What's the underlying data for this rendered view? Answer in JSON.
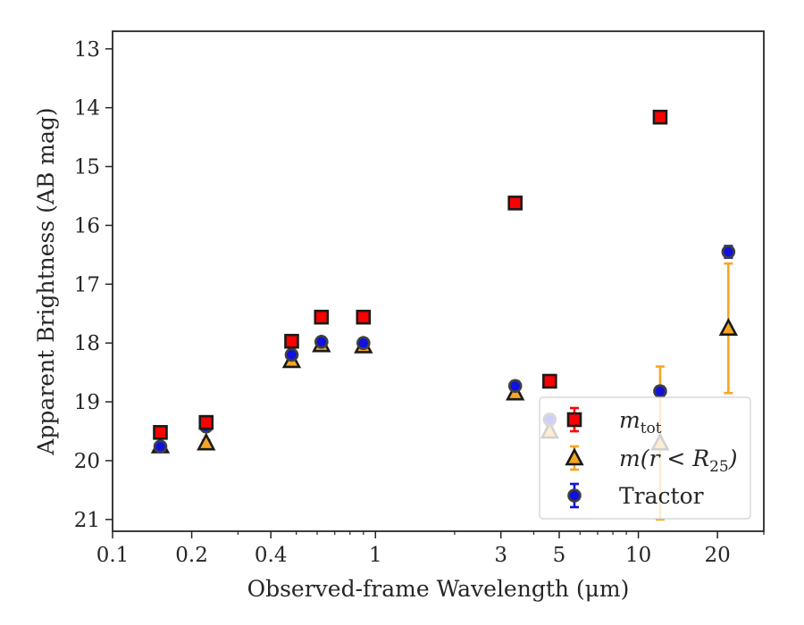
{
  "chart_data": {
    "type": "scatter",
    "title": "",
    "xlabel": "Observed-frame Wavelength (μm)",
    "ylabel": "Apparent Brightness (AB mag)",
    "xscale": "log",
    "xlim": [
      0.1,
      30
    ],
    "ylim": [
      21.2,
      12.7
    ],
    "y_inverted": true,
    "grid": false,
    "legend_position": "lower-right",
    "x_ticks": [
      {
        "value": 0.1,
        "label": "0.1"
      },
      {
        "value": 0.2,
        "label": "0.2"
      },
      {
        "value": 0.4,
        "label": "0.4"
      },
      {
        "value": 1,
        "label": "1"
      },
      {
        "value": 3,
        "label": "3"
      },
      {
        "value": 5,
        "label": "5"
      },
      {
        "value": 10,
        "label": "10"
      },
      {
        "value": 20,
        "label": "20"
      }
    ],
    "y_ticks": [
      {
        "value": 13,
        "label": "13"
      },
      {
        "value": 14,
        "label": "14"
      },
      {
        "value": 15,
        "label": "15"
      },
      {
        "value": 16,
        "label": "16"
      },
      {
        "value": 17,
        "label": "17"
      },
      {
        "value": 18,
        "label": "18"
      },
      {
        "value": 19,
        "label": "19"
      },
      {
        "value": 20,
        "label": "20"
      },
      {
        "value": 21,
        "label": "21"
      }
    ],
    "series": [
      {
        "name": "m_tot",
        "legend_main": "m",
        "legend_sub": "tot",
        "marker": "square",
        "color": "#ff0000",
        "edge_color": "#1a1a1a",
        "error_color": "#ff0000",
        "points": [
          {
            "x": 0.152,
            "y": 19.52,
            "err": 0.05
          },
          {
            "x": 0.227,
            "y": 19.35,
            "err": 0.05
          },
          {
            "x": 0.48,
            "y": 17.97,
            "err": 0.03
          },
          {
            "x": 0.623,
            "y": 17.56,
            "err": 0.03
          },
          {
            "x": 0.9,
            "y": 17.56,
            "err": 0.03
          },
          {
            "x": 3.4,
            "y": 15.62,
            "err": 0.03
          },
          {
            "x": 4.6,
            "y": 18.65,
            "err": 0.05
          },
          {
            "x": 12.1,
            "y": 14.16,
            "err": 0.03
          }
        ]
      },
      {
        "name": "m(r < R25)",
        "legend_main": "m(r < R",
        "legend_sub": "25",
        "legend_tail": ")",
        "marker": "triangle",
        "color": "#f5a623",
        "edge_color": "#1a1a1a",
        "error_color": "#f5a623",
        "points": [
          {
            "x": 0.152,
            "y": 19.75,
            "err": 0.05
          },
          {
            "x": 0.227,
            "y": 19.7,
            "err": 0.05
          },
          {
            "x": 0.48,
            "y": 18.3,
            "err": 0.03
          },
          {
            "x": 0.623,
            "y": 18.03,
            "err": 0.03
          },
          {
            "x": 0.9,
            "y": 18.05,
            "err": 0.03
          },
          {
            "x": 3.4,
            "y": 18.85,
            "err": 0.05
          },
          {
            "x": 4.6,
            "y": 19.5,
            "err": 0.1
          },
          {
            "x": 12.1,
            "y": 19.7,
            "err": 1.3
          },
          {
            "x": 22.0,
            "y": 17.75,
            "err": 1.1
          }
        ]
      },
      {
        "name": "Tractor",
        "legend_main": "Tractor",
        "marker": "circle",
        "color": "#1010e0",
        "edge_color": "#404040",
        "error_color": "#1010e0",
        "points": [
          {
            "x": 0.152,
            "y": 19.76,
            "err": 0.05
          },
          {
            "x": 0.227,
            "y": 19.42,
            "err": 0.05
          },
          {
            "x": 0.48,
            "y": 18.2,
            "err": 0.03
          },
          {
            "x": 0.623,
            "y": 17.98,
            "err": 0.03
          },
          {
            "x": 0.9,
            "y": 18.0,
            "err": 0.03
          },
          {
            "x": 3.4,
            "y": 18.73,
            "err": 0.08
          },
          {
            "x": 4.6,
            "y": 19.3,
            "err": 0.08
          },
          {
            "x": 12.1,
            "y": 18.82,
            "err": 0.08
          },
          {
            "x": 22.0,
            "y": 16.45,
            "err": 0.1
          }
        ]
      }
    ]
  }
}
